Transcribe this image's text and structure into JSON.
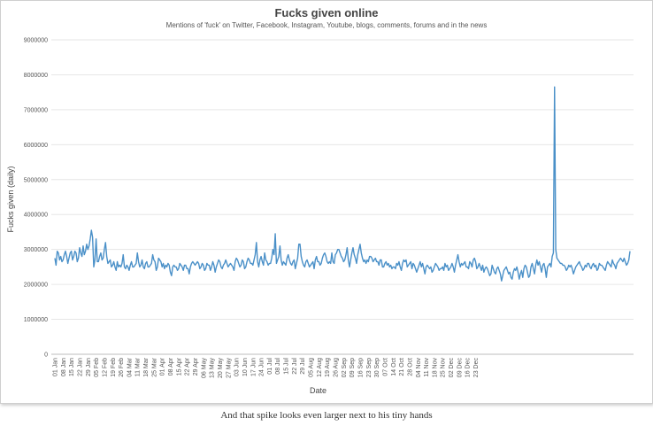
{
  "chart_data": {
    "type": "line",
    "title": "Fucks given online",
    "subtitle": "Mentions of 'fuck' on Twitter, Facebook, Instagram, Youtube, blogs, comments, forums and in the news",
    "xlabel": "Date",
    "ylabel": "Fucks given (daily)",
    "ylim": [
      0,
      9000000
    ],
    "yticks": [
      "0",
      "1000000",
      "2000000",
      "3000000",
      "4000000",
      "5000000",
      "6000000",
      "7000000",
      "8000000",
      "9000000"
    ],
    "xticks": [
      "01 Jan",
      "08 Jan",
      "15 Jan",
      "22 Jan",
      "29 Jan",
      "05 Feb",
      "12 Feb",
      "19 Feb",
      "26 Feb",
      "04 Mar",
      "11 Mar",
      "18 Mar",
      "25 Mar",
      "01 Apr",
      "08 Apr",
      "15 Apr",
      "22 Apr",
      "29 Apr",
      "06 May",
      "13 May",
      "20 May",
      "27 May",
      "03 Jun",
      "10 Jun",
      "17 Jun",
      "24 Jun",
      "01 Jul",
      "08 Jul",
      "15 Jul",
      "22 Jul",
      "29 Jul",
      "05 Aug",
      "12 Aug",
      "19 Aug",
      "26 Aug",
      "02 Sep",
      "09 Sep",
      "16 Sep",
      "23 Sep",
      "30 Sep",
      "07 Oct",
      "14 Oct",
      "21 Oct",
      "28 Oct",
      "04 Nov",
      "11 Nov",
      "18 Nov",
      "25 Nov",
      "02 Dec",
      "09 Dec",
      "16 Dec",
      "23 Dec"
    ],
    "grid": true,
    "legend": "none",
    "series": [
      {
        "color": "#4a90c8",
        "values": [
          2750000,
          2550000,
          2950000,
          2900000,
          2700000,
          2800000,
          2650000,
          2700000,
          2850000,
          2950000,
          2800000,
          2600000,
          2750000,
          2900000,
          2950000,
          2700000,
          2800000,
          2950000,
          2900000,
          2650000,
          2750000,
          3050000,
          2900000,
          2800000,
          3100000,
          2850000,
          2950000,
          3150000,
          3000000,
          3100000,
          3300000,
          3550000,
          3350000,
          2500000,
          2700000,
          3300000,
          2650000,
          2650000,
          2800000,
          2900000,
          2700000,
          2750000,
          3000000,
          3200000,
          2800000,
          2600000,
          2650000,
          2700000,
          2500000,
          2550000,
          2650000,
          2500000,
          2400000,
          2650000,
          2500000,
          2550000,
          2500000,
          2600000,
          2850000,
          2500000,
          2450000,
          2550000,
          2500000,
          2400000,
          2550000,
          2650000,
          2500000,
          2500000,
          2550000,
          2600000,
          2900000,
          2650000,
          2500000,
          2550000,
          2700000,
          2500000,
          2450000,
          2600000,
          2650000,
          2500000,
          2500000,
          2550000,
          2600000,
          2850000,
          2700000,
          2650000,
          2400000,
          2500000,
          2750000,
          2700000,
          2650000,
          2500000,
          2600000,
          2450000,
          2550000,
          2500000,
          2600000,
          2550000,
          2350000,
          2250000,
          2500000,
          2550000,
          2500000,
          2500000,
          2400000,
          2450000,
          2600000,
          2550000,
          2500000,
          2400000,
          2550000,
          2550000,
          2450000,
          2450000,
          2300000,
          2500000,
          2600000,
          2650000,
          2600000,
          2550000,
          2600000,
          2650000,
          2600000,
          2450000,
          2500000,
          2600000,
          2550000,
          2400000,
          2450000,
          2600000,
          2550000,
          2550000,
          2400000,
          2500000,
          2650000,
          2550000,
          2350000,
          2500000,
          2600000,
          2700000,
          2650000,
          2500000,
          2450000,
          2550000,
          2600000,
          2700000,
          2600000,
          2500000,
          2550000,
          2600000,
          2550000,
          2500000,
          2400000,
          2650000,
          2750000,
          2700000,
          2600000,
          2500000,
          2550000,
          2700000,
          2650000,
          2450000,
          2500000,
          2650000,
          2750000,
          2700000,
          2600000,
          2600000,
          2550000,
          2700000,
          2850000,
          3200000,
          2650000,
          2500000,
          2700000,
          2800000,
          2650000,
          2550000,
          2900000,
          2700000,
          2650000,
          2550000,
          2600000,
          2600000,
          2750000,
          3000000,
          2850000,
          3450000,
          2600000,
          2700000,
          2800000,
          3100000,
          2700000,
          2550000,
          2650000,
          2600000,
          2550000,
          2750000,
          2850000,
          2700000,
          2600000,
          2550000,
          2650000,
          2700000,
          2450000,
          2600000,
          2750000,
          3150000,
          3150000,
          2800000,
          2650000,
          2550000,
          2500000,
          2650000,
          2700000,
          2600000,
          2500000,
          2550000,
          2600000,
          2650000,
          2450000,
          2700000,
          2800000,
          2650000,
          2650000,
          2550000,
          2600000,
          2750000,
          2850000,
          2900000,
          2800000,
          2650000,
          2600000,
          2650000,
          2600000,
          2900000,
          2650000,
          2600000,
          2850000,
          2900000,
          3000000,
          3000000,
          2900000,
          2800000,
          2750000,
          2650000,
          2700000,
          2850000,
          3050000,
          2700000,
          2500000,
          2700000,
          2900000,
          3050000,
          2850000,
          2750000,
          2600000,
          2850000,
          3000000,
          3150000,
          2900000,
          2750000,
          2650000,
          2700000,
          2600000,
          2700000,
          2650000,
          2800000,
          2800000,
          2750000,
          2650000,
          2700000,
          2750000,
          2650000,
          2650000,
          2550000,
          2700000,
          2700000,
          2500000,
          2500000,
          2600000,
          2650000,
          2550000,
          2600000,
          2500000,
          2550000,
          2450000,
          2500000,
          2500000,
          2450000,
          2600000,
          2550000,
          2650000,
          2500000,
          2400000,
          2600000,
          2700000,
          2650000,
          2700000,
          2500000,
          2550000,
          2600000,
          2650000,
          2450000,
          2600000,
          2550000,
          2450000,
          2350000,
          2450000,
          2550000,
          2650000,
          2500000,
          2600000,
          2450000,
          2300000,
          2500000,
          2550000,
          2500000,
          2450000,
          2500000,
          2350000,
          2400000,
          2500000,
          2600000,
          2550000,
          2500000,
          2400000,
          2450000,
          2450000,
          2500000,
          2400000,
          2600000,
          2500000,
          2550000,
          2400000,
          2450000,
          2500000,
          2600000,
          2500000,
          2350000,
          2550000,
          2700000,
          2850000,
          2650000,
          2500000,
          2600000,
          2550000,
          2600000,
          2650000,
          2500000,
          2500000,
          2450000,
          2650000,
          2600000,
          2500000,
          2700000,
          2750000,
          2650000,
          2450000,
          2500000,
          2600000,
          2500000,
          2400000,
          2550000,
          2350000,
          2450000,
          2500000,
          2450000,
          2350000,
          2250000,
          2300000,
          2550000,
          2450000,
          2350000,
          2300000,
          2450000,
          2500000,
          2400000,
          2300000,
          2100000,
          2250000,
          2400000,
          2450000,
          2500000,
          2400000,
          2300000,
          2350000,
          2200000,
          2150000,
          2350000,
          2450000,
          2400000,
          2500000,
          2350000,
          2150000,
          2300000,
          2400000,
          2200000,
          2450000,
          2550000,
          2500000,
          2350000,
          2200000,
          2250000,
          2500000,
          2600000,
          2450000,
          2300000,
          2550000,
          2700000,
          2550000,
          2650000,
          2500000,
          2350000,
          2550000,
          2600000,
          2450000,
          2200000,
          2500000,
          2550000,
          2600000,
          2500000,
          2800000,
          2900000,
          7650000,
          3000000,
          2750000,
          2700000,
          2650000,
          2600000,
          2600000,
          2550000,
          2550000,
          2500000,
          2400000,
          2450000,
          2550000,
          2500000,
          2550000,
          2450000,
          2300000,
          2400000,
          2500000,
          2550000,
          2600000,
          2650000,
          2550000,
          2500000,
          2400000,
          2450000,
          2550000,
          2500000,
          2600000,
          2600000,
          2500000,
          2450000,
          2550000,
          2600000,
          2500000,
          2550000,
          2400000,
          2450000,
          2600000,
          2550000,
          2550000,
          2500000,
          2450000,
          2400000,
          2550000,
          2650000,
          2600000,
          2550000,
          2500000,
          2700000,
          2600000,
          2550000,
          2450000,
          2600000,
          2650000,
          2700000,
          2750000,
          2700000,
          2650000,
          2750000,
          2650000,
          2550000,
          2600000,
          2700000,
          2950000
        ]
      }
    ]
  },
  "caption": "And that spike looks even larger next to his tiny hands"
}
